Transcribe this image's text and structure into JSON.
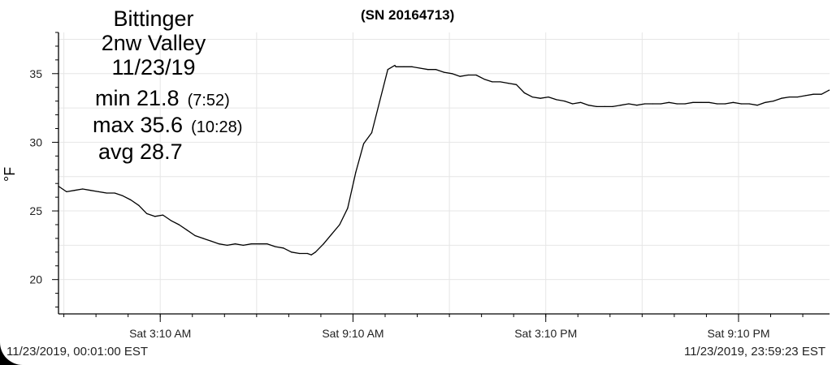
{
  "header": {
    "serial": "(SN 20164713)",
    "station_line1": "Bittinger",
    "station_line2": "2nw Valley",
    "date": "11/23/19"
  },
  "stats": {
    "min_label": "min 21.8",
    "min_time": "(7:52)",
    "max_label": "max 35.6",
    "max_time": "(10:28)",
    "avg_label": "avg 28.7"
  },
  "range": {
    "start": "11/23/2019, 00:01:00 EST",
    "end": "11/23/2019, 23:59:23 EST"
  },
  "chart_data": {
    "type": "line",
    "title": "(SN 20164713)",
    "xlabel": "",
    "ylabel": "°F",
    "xlim": [
      0,
      24
    ],
    "ylim": [
      17.5,
      38
    ],
    "x_unit": "hours since 00:00 EST, 11/23/2019",
    "yticks": [
      20,
      25,
      30,
      35
    ],
    "xticks": [
      {
        "x": 3.1667,
        "label": "Sat 3:10 AM"
      },
      {
        "x": 9.1667,
        "label": "Sat 9:10 AM"
      },
      {
        "x": 15.1667,
        "label": "Sat 3:10 PM"
      },
      {
        "x": 21.1667,
        "label": "Sat 9:10 PM"
      }
    ],
    "grid": true,
    "series": [
      {
        "name": "",
        "color": "#000000",
        "x": [
          0.0,
          0.25,
          0.5,
          0.75,
          1.0,
          1.25,
          1.5,
          1.75,
          2.0,
          2.25,
          2.5,
          2.75,
          3.0,
          3.25,
          3.5,
          3.75,
          4.0,
          4.25,
          4.5,
          4.75,
          5.0,
          5.25,
          5.5,
          5.75,
          6.0,
          6.25,
          6.5,
          6.75,
          7.0,
          7.25,
          7.5,
          7.75,
          7.87,
          8.0,
          8.25,
          8.5,
          8.75,
          9.0,
          9.25,
          9.5,
          9.75,
          10.0,
          10.25,
          10.47,
          10.5,
          10.75,
          11.0,
          11.25,
          11.5,
          11.75,
          12.0,
          12.25,
          12.5,
          12.75,
          13.0,
          13.25,
          13.5,
          13.75,
          14.0,
          14.25,
          14.5,
          14.75,
          15.0,
          15.25,
          15.5,
          15.75,
          16.0,
          16.25,
          16.5,
          16.75,
          17.0,
          17.25,
          17.5,
          17.75,
          18.0,
          18.25,
          18.5,
          18.75,
          19.0,
          19.25,
          19.5,
          19.75,
          20.0,
          20.25,
          20.5,
          20.75,
          21.0,
          21.25,
          21.5,
          21.75,
          22.0,
          22.25,
          22.5,
          22.75,
          23.0,
          23.25,
          23.5,
          23.75,
          23.99
        ],
        "y": [
          26.8,
          26.4,
          26.5,
          26.6,
          26.5,
          26.4,
          26.3,
          26.3,
          26.1,
          25.8,
          25.4,
          24.8,
          24.6,
          24.7,
          24.3,
          24.0,
          23.6,
          23.2,
          23.0,
          22.8,
          22.6,
          22.5,
          22.6,
          22.5,
          22.6,
          22.6,
          22.6,
          22.4,
          22.3,
          22.0,
          21.9,
          21.9,
          21.8,
          22.0,
          22.6,
          23.3,
          24.0,
          25.2,
          27.8,
          29.9,
          30.7,
          33.0,
          35.3,
          35.6,
          35.5,
          35.5,
          35.5,
          35.4,
          35.3,
          35.3,
          35.1,
          35.0,
          34.8,
          34.9,
          34.9,
          34.6,
          34.4,
          34.4,
          34.3,
          34.2,
          33.6,
          33.3,
          33.2,
          33.3,
          33.1,
          33.0,
          32.8,
          32.9,
          32.7,
          32.6,
          32.6,
          32.6,
          32.7,
          32.8,
          32.7,
          32.8,
          32.8,
          32.8,
          32.9,
          32.8,
          32.8,
          32.9,
          32.9,
          32.9,
          32.8,
          32.8,
          32.9,
          32.8,
          32.8,
          32.7,
          32.9,
          33.0,
          33.2,
          33.3,
          33.3,
          33.4,
          33.5,
          33.5,
          33.8
        ]
      }
    ]
  }
}
